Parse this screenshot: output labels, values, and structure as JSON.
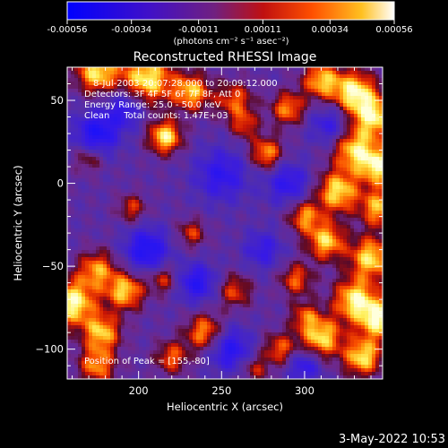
{
  "colorbar": {
    "tick_labels": [
      "-0.00056",
      "-0.00034",
      "-0.00011",
      "0.00011",
      "0.00034",
      "0.00056"
    ],
    "tick_values": [
      -0.00056,
      -0.00034,
      -0.00011,
      0.00011,
      0.00034,
      0.00056
    ],
    "range": [
      -0.00056,
      0.00056
    ],
    "units_label": "(photons cm⁻² s⁻¹ asec⁻²)"
  },
  "footer": {
    "date_stamp": "3-May-2022 10:53"
  },
  "colors": {
    "background": "#000000",
    "negative": "#1a10ff",
    "zero": "#7040c0",
    "mid_positive": "#e02000",
    "high_positive": "#ffff60"
  },
  "chart_data": {
    "type": "heatmap",
    "title": "Reconstructed RHESSI Image",
    "xlabel": "Heliocentric X (arcsec)",
    "ylabel": "Heliocentric Y (arcsec)",
    "xlim": [
      157,
      347
    ],
    "ylim": [
      -118,
      70
    ],
    "xticks": [
      200,
      250,
      300
    ],
    "yticks": [
      50,
      0,
      -50,
      -100
    ],
    "xtick_labels": [
      "200",
      "250",
      "300"
    ],
    "ytick_labels": [
      "50",
      "0",
      "−50",
      "−100"
    ],
    "annotations": [
      "8-Jul-2003 20:07:28.000 to 20:09:12.000",
      "Detectors: 3F 4F 5F 6F 7F 8F, Att 0",
      "Energy Range: 25.0 - 50.0 keV",
      "Clean     Total counts: 1.47E+03"
    ],
    "peak_label": "Position of Peak = [155,-80]",
    "peak_position": [
      155,
      -80
    ],
    "blobs": [
      {
        "x": 175,
        "y": 67,
        "v": 0.9,
        "s": 9
      },
      {
        "x": 205,
        "y": 63,
        "v": 0.95,
        "s": 11
      },
      {
        "x": 232,
        "y": 55,
        "v": 0.8,
        "s": 8
      },
      {
        "x": 258,
        "y": 50,
        "v": 0.6,
        "s": 8
      },
      {
        "x": 290,
        "y": 45,
        "v": 0.7,
        "s": 7
      },
      {
        "x": 310,
        "y": 62,
        "v": 0.8,
        "s": 8
      },
      {
        "x": 330,
        "y": 55,
        "v": 0.95,
        "s": 9
      },
      {
        "x": 342,
        "y": 40,
        "v": 0.9,
        "s": 9
      },
      {
        "x": 216,
        "y": 28,
        "v": 0.95,
        "s": 7
      },
      {
        "x": 277,
        "y": 18,
        "v": 0.75,
        "s": 7
      },
      {
        "x": 264,
        "y": 35,
        "v": 0.5,
        "s": 6
      },
      {
        "x": 330,
        "y": 20,
        "v": 0.85,
        "s": 9
      },
      {
        "x": 345,
        "y": 10,
        "v": 0.9,
        "s": 8
      },
      {
        "x": 320,
        "y": -5,
        "v": 0.9,
        "s": 9
      },
      {
        "x": 345,
        "y": -15,
        "v": 0.8,
        "s": 8
      },
      {
        "x": 300,
        "y": -20,
        "v": 0.7,
        "s": 7
      },
      {
        "x": 313,
        "y": -35,
        "v": 0.85,
        "s": 8
      },
      {
        "x": 340,
        "y": -45,
        "v": 0.9,
        "s": 9
      },
      {
        "x": 295,
        "y": -58,
        "v": 0.6,
        "s": 7
      },
      {
        "x": 330,
        "y": -70,
        "v": 0.9,
        "s": 9
      },
      {
        "x": 345,
        "y": -82,
        "v": 0.95,
        "s": 9
      },
      {
        "x": 310,
        "y": -93,
        "v": 0.9,
        "s": 9
      },
      {
        "x": 285,
        "y": -100,
        "v": 0.6,
        "s": 7
      },
      {
        "x": 335,
        "y": -105,
        "v": 0.9,
        "s": 8
      },
      {
        "x": 160,
        "y": -72,
        "v": 1.0,
        "s": 10
      },
      {
        "x": 175,
        "y": -52,
        "v": 0.7,
        "s": 8
      },
      {
        "x": 192,
        "y": -65,
        "v": 0.85,
        "s": 8
      },
      {
        "x": 178,
        "y": -90,
        "v": 0.8,
        "s": 8
      },
      {
        "x": 175,
        "y": -110,
        "v": 0.7,
        "s": 8
      },
      {
        "x": 215,
        "y": -58,
        "v": 0.5,
        "s": 6
      },
      {
        "x": 240,
        "y": -90,
        "v": 0.75,
        "s": 8
      },
      {
        "x": 220,
        "y": -105,
        "v": 0.6,
        "s": 7
      },
      {
        "x": 258,
        "y": -65,
        "v": 0.55,
        "s": 7
      },
      {
        "x": 232,
        "y": -30,
        "v": 0.5,
        "s": 6
      },
      {
        "x": 196,
        "y": -15,
        "v": 0.5,
        "s": 6
      },
      {
        "x": 170,
        "y": 15,
        "v": 0.45,
        "s": 6
      },
      {
        "x": 300,
        "y": -80,
        "v": 0.5,
        "s": 6
      },
      {
        "x": 270,
        "y": -112,
        "v": 0.45,
        "s": 6
      }
    ],
    "dips": [
      {
        "x": 175,
        "y": 30,
        "v": -0.8,
        "s": 9
      },
      {
        "x": 205,
        "y": -40,
        "v": -0.8,
        "s": 9
      },
      {
        "x": 250,
        "y": 5,
        "v": -0.6,
        "s": 11
      },
      {
        "x": 235,
        "y": -60,
        "v": -0.7,
        "s": 8
      },
      {
        "x": 290,
        "y": 0,
        "v": -0.6,
        "s": 9
      },
      {
        "x": 255,
        "y": -100,
        "v": -0.7,
        "s": 9
      },
      {
        "x": 315,
        "y": 35,
        "v": -0.5,
        "s": 8
      },
      {
        "x": 275,
        "y": -40,
        "v": -0.5,
        "s": 8
      },
      {
        "x": 192,
        "y": 45,
        "v": -0.6,
        "s": 8
      },
      {
        "x": 300,
        "y": -110,
        "v": -0.6,
        "s": 7
      }
    ]
  }
}
